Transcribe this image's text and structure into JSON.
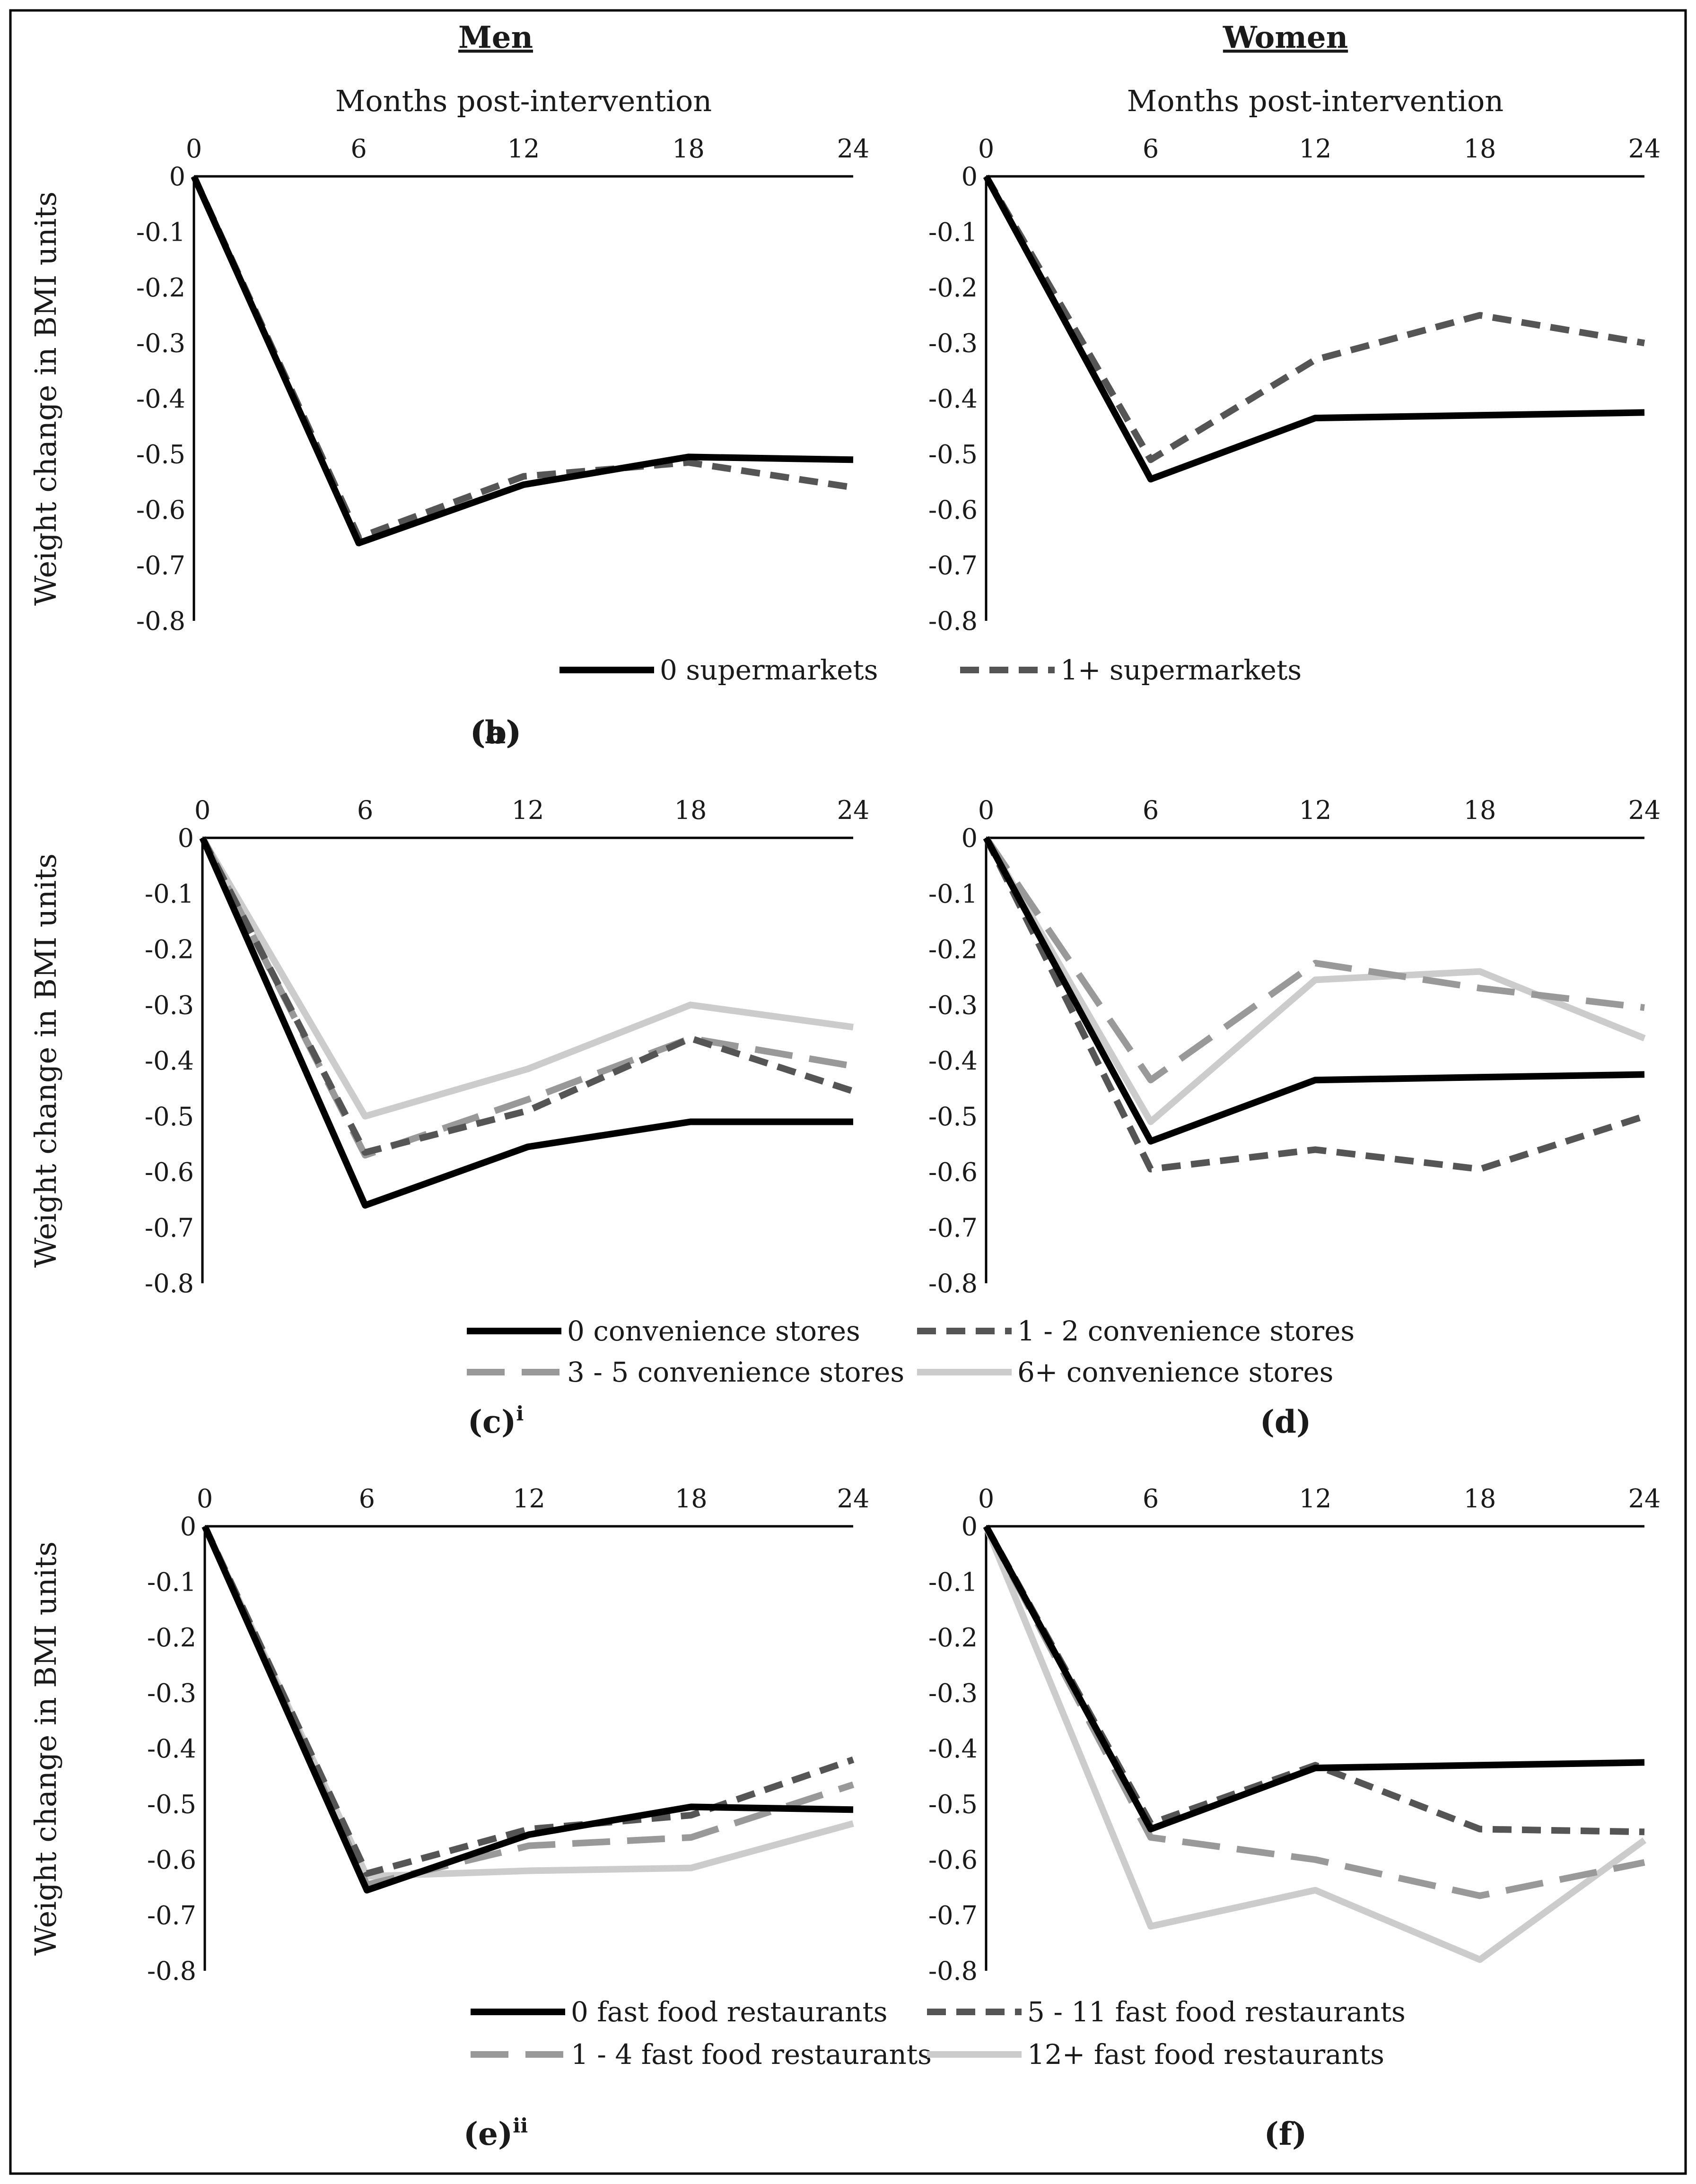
{
  "figure": {
    "column_headings": [
      "Men",
      "Women"
    ],
    "x_axis_title": "Months post-intervention",
    "y_axis_title": "Weight change in BMI units",
    "x_tick_labels": [
      "0",
      "6",
      "12",
      "18",
      "24"
    ],
    "y_tick_labels": [
      "0",
      "-0.1",
      "-0.2",
      "-0.3",
      "-0.4",
      "-0.5",
      "-0.6",
      "-0.7",
      "-0.8"
    ],
    "colors": {
      "black": "#000000",
      "dark_gray": "#555555",
      "mid_gray": "#999999",
      "light_gray": "#cccccc",
      "frame": "#000000"
    }
  },
  "legends": {
    "supermarkets": [
      "0 supermarkets",
      "1+ supermarkets"
    ],
    "convenience": [
      "0 convenience stores",
      "1 - 2 convenience stores",
      "3 - 5 convenience stores",
      "6+ convenience stores"
    ],
    "fastfood": [
      "0 fast food restaurants",
      "5 - 11 fast food restaurants",
      "1 - 4 fast food restaurants",
      "12+ fast food restaurants"
    ]
  },
  "chart_data": [
    {
      "panel": "(a)",
      "type": "line",
      "x": [
        0,
        6,
        12,
        18,
        24
      ],
      "xlabel": "Months post-intervention",
      "ylabel": "Weight change in BMI units",
      "xlim": [
        0,
        24
      ],
      "ylim": [
        -0.8,
        0
      ],
      "series": [
        {
          "name": "0 supermarkets",
          "values": [
            0,
            -0.66,
            -0.555,
            -0.505,
            -0.51
          ]
        },
        {
          "name": "1+ supermarkets",
          "values": [
            0,
            -0.65,
            -0.54,
            -0.515,
            -0.56
          ]
        }
      ]
    },
    {
      "panel": "(b)",
      "type": "line",
      "x": [
        0,
        6,
        12,
        18,
        24
      ],
      "xlabel": "Months post-intervention",
      "ylabel": "",
      "xlim": [
        0,
        24
      ],
      "ylim": [
        -0.8,
        0
      ],
      "series": [
        {
          "name": "0 supermarkets",
          "values": [
            0,
            -0.545,
            -0.435,
            -0.43,
            -0.425
          ]
        },
        {
          "name": "1+ supermarkets",
          "values": [
            0,
            -0.51,
            -0.33,
            -0.25,
            -0.3
          ]
        }
      ]
    },
    {
      "panel": "(c)",
      "superscript": "i",
      "type": "line",
      "x": [
        0,
        6,
        12,
        18,
        24
      ],
      "xlabel": "",
      "ylabel": "Weight change in BMI units",
      "xlim": [
        0,
        24
      ],
      "ylim": [
        -0.8,
        0
      ],
      "series": [
        {
          "name": "0 convenience stores",
          "values": [
            0,
            -0.66,
            -0.555,
            -0.51,
            -0.51
          ]
        },
        {
          "name": "1 - 2 convenience stores",
          "values": [
            0,
            -0.565,
            -0.49,
            -0.36,
            -0.455
          ]
        },
        {
          "name": "3 - 5 convenience stores",
          "values": [
            0,
            -0.57,
            -0.47,
            -0.36,
            -0.41
          ]
        },
        {
          "name": "6+ convenience stores",
          "values": [
            0,
            -0.5,
            -0.415,
            -0.3,
            -0.34
          ]
        }
      ]
    },
    {
      "panel": "(d)",
      "type": "line",
      "x": [
        0,
        6,
        12,
        18,
        24
      ],
      "xlabel": "",
      "ylabel": "",
      "xlim": [
        0,
        24
      ],
      "ylim": [
        -0.8,
        0
      ],
      "series": [
        {
          "name": "0 convenience stores",
          "values": [
            0,
            -0.545,
            -0.435,
            -0.43,
            -0.425
          ]
        },
        {
          "name": "1 - 2 convenience stores",
          "values": [
            0,
            -0.595,
            -0.56,
            -0.595,
            -0.5
          ]
        },
        {
          "name": "3 - 5 convenience stores",
          "values": [
            0,
            -0.435,
            -0.225,
            -0.27,
            -0.305
          ]
        },
        {
          "name": "6+ convenience stores",
          "values": [
            0,
            -0.51,
            -0.255,
            -0.24,
            -0.36
          ]
        }
      ]
    },
    {
      "panel": "(e)",
      "superscript": "ii",
      "type": "line",
      "x": [
        0,
        6,
        12,
        18,
        24
      ],
      "xlabel": "",
      "ylabel": "Weight change in BMI units",
      "xlim": [
        0,
        24
      ],
      "ylim": [
        -0.8,
        0
      ],
      "series": [
        {
          "name": "0 fast food restaurants",
          "values": [
            0,
            -0.655,
            -0.555,
            -0.505,
            -0.51
          ]
        },
        {
          "name": "5 - 11 fast food restaurants",
          "values": [
            0,
            -0.625,
            -0.545,
            -0.52,
            -0.42
          ]
        },
        {
          "name": "1 - 4 fast food restaurants",
          "values": [
            0,
            -0.645,
            -0.575,
            -0.56,
            -0.465
          ]
        },
        {
          "name": "12+ fast food restaurants",
          "values": [
            0,
            -0.63,
            -0.62,
            -0.615,
            -0.535
          ]
        }
      ]
    },
    {
      "panel": "(f)",
      "type": "line",
      "x": [
        0,
        6,
        12,
        18,
        24
      ],
      "xlabel": "",
      "ylabel": "",
      "xlim": [
        0,
        24
      ],
      "ylim": [
        -0.8,
        0
      ],
      "series": [
        {
          "name": "0 fast food restaurants",
          "values": [
            0,
            -0.545,
            -0.435,
            -0.43,
            -0.425
          ]
        },
        {
          "name": "5 - 11 fast food restaurants",
          "values": [
            0,
            -0.535,
            -0.43,
            -0.545,
            -0.55
          ]
        },
        {
          "name": "1 - 4 fast food restaurants",
          "values": [
            0,
            -0.56,
            -0.6,
            -0.665,
            -0.605
          ]
        },
        {
          "name": "12+ fast food restaurants",
          "values": [
            0,
            -0.72,
            -0.655,
            -0.78,
            -0.565
          ]
        }
      ]
    }
  ]
}
